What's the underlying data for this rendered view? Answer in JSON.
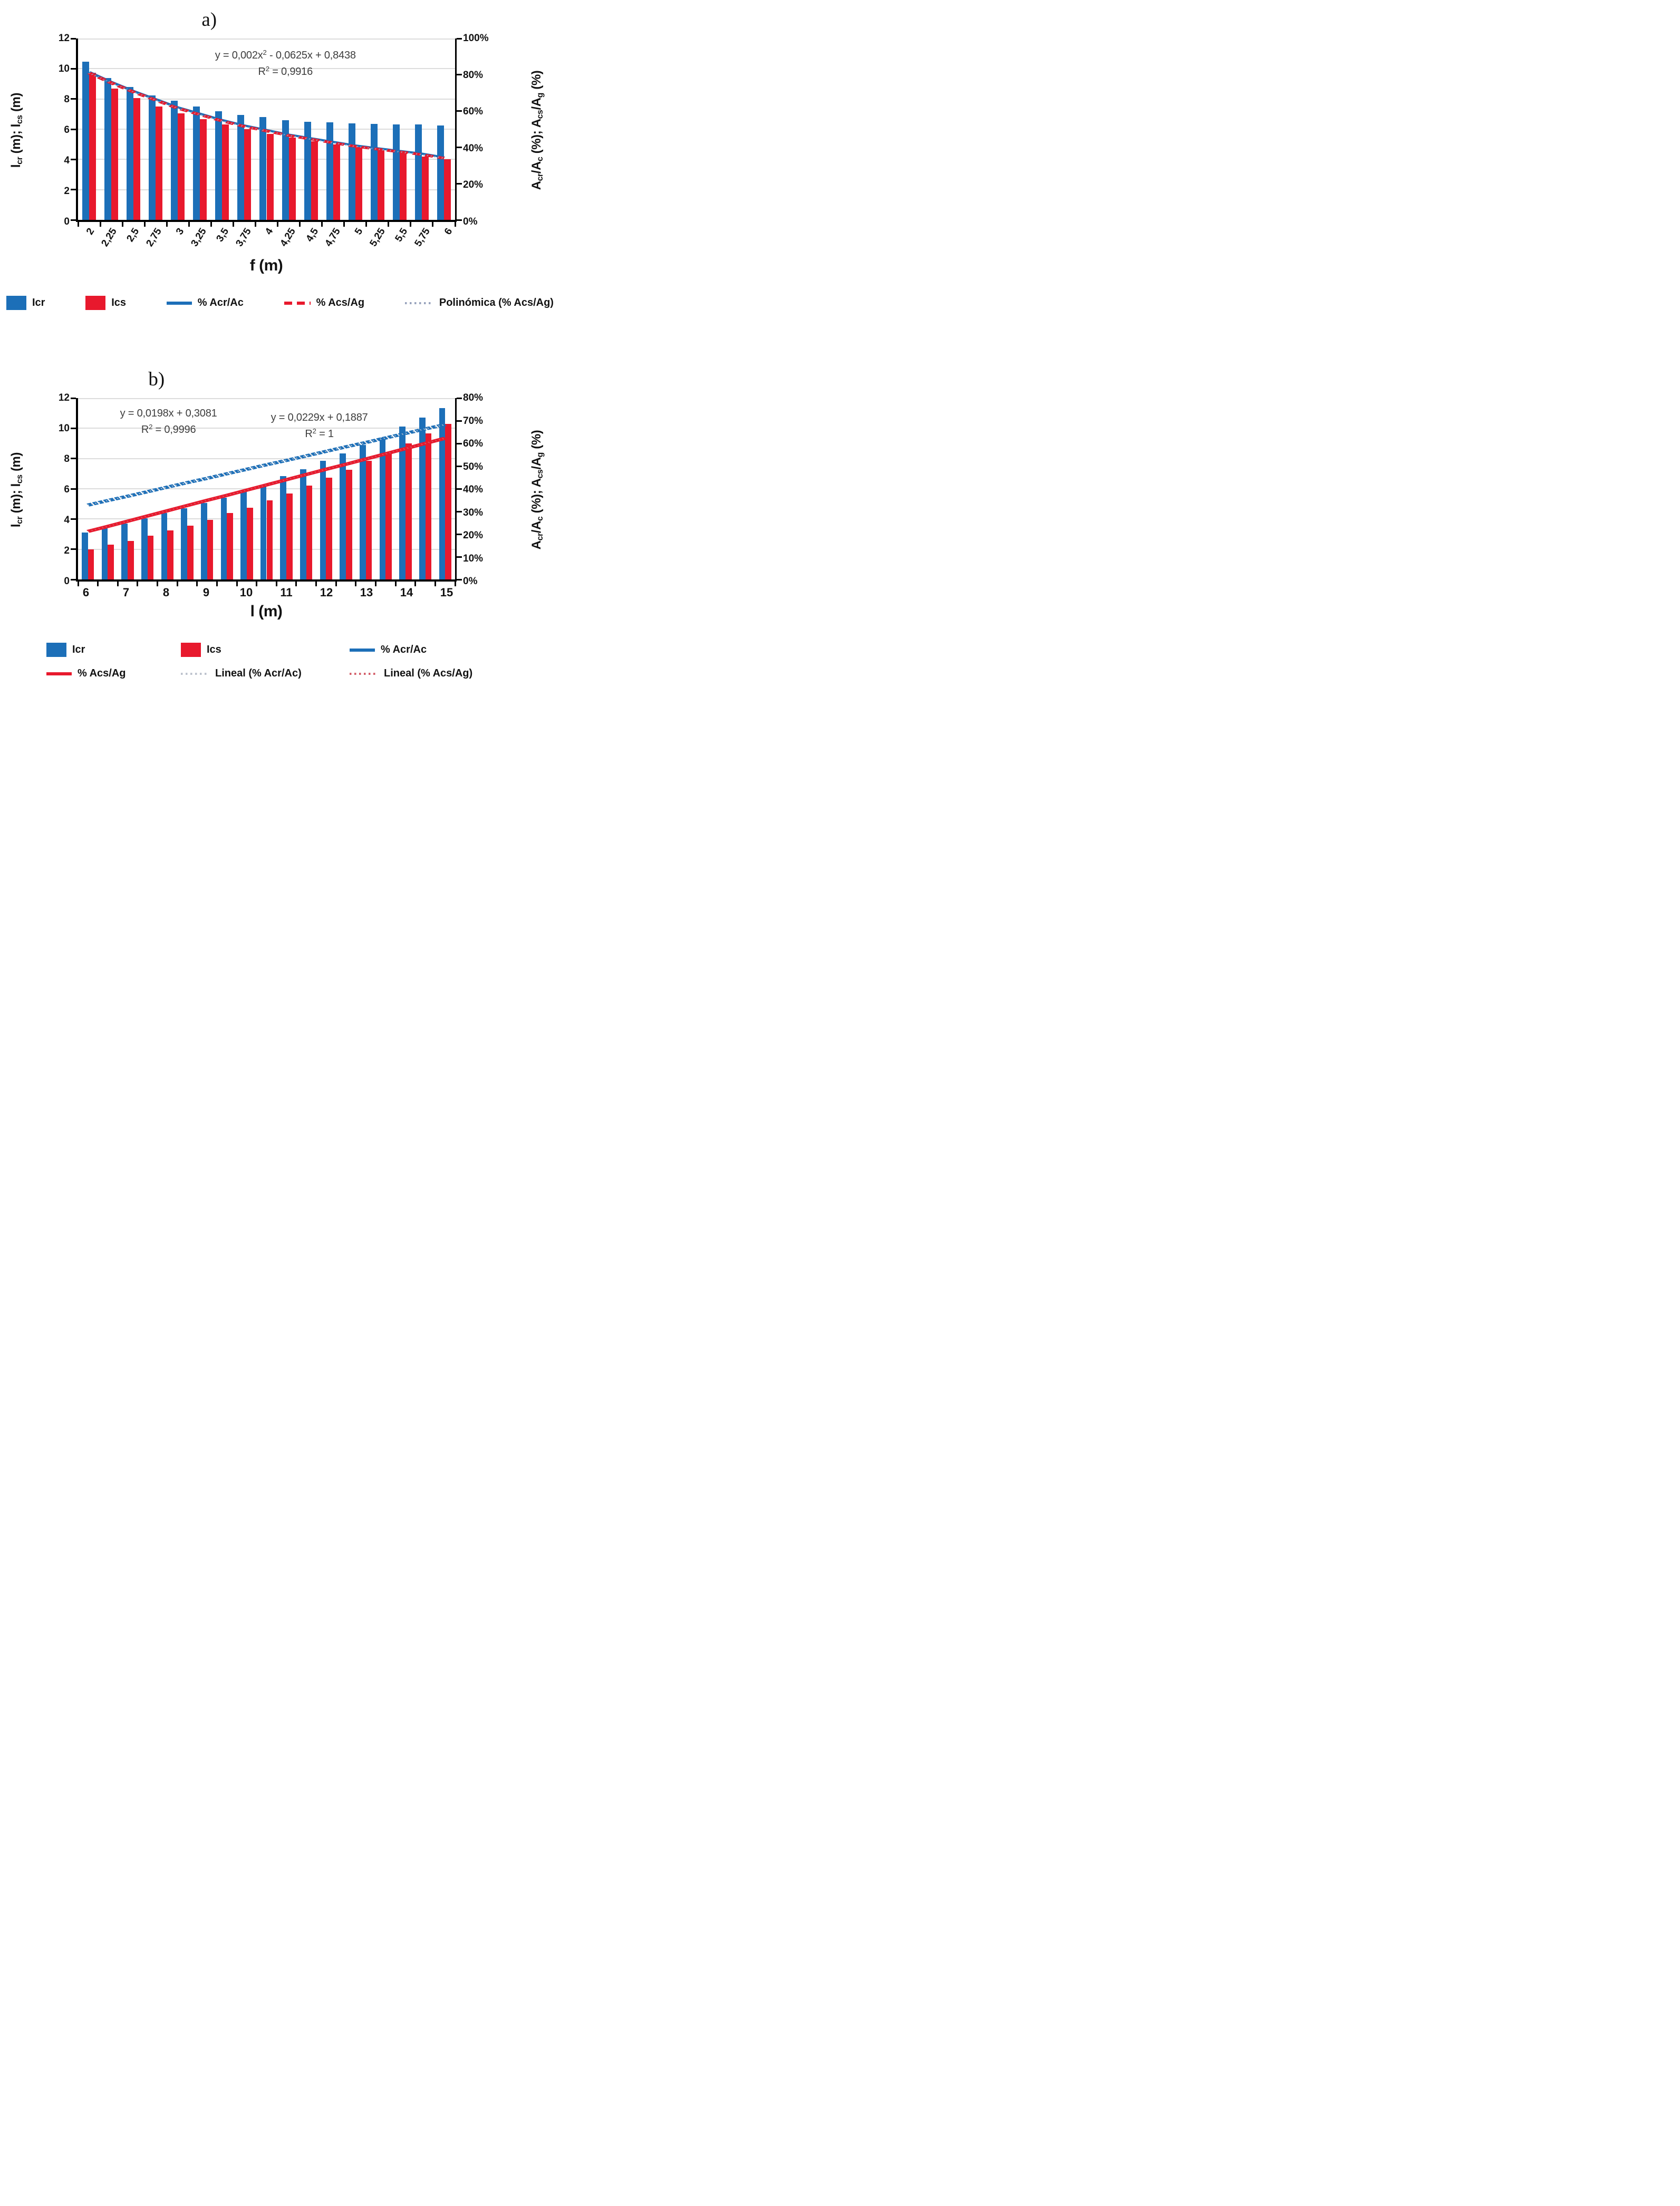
{
  "figure": {
    "background": "#ffffff"
  },
  "colors": {
    "bar_blue": "#1C6FB8",
    "bar_red": "#E8192D",
    "poly_dots": "#9AA5BE",
    "lineal_gray": "#BDC3CE",
    "lineal_red": "#D4606B",
    "gridline": "#dcdcdc",
    "axis": "#000000"
  },
  "chart_data": [
    {
      "id": "a",
      "type": "bar",
      "title": "a)",
      "x_title": "f (m)",
      "ylabel_left": "lcr (m); lcs (m)",
      "ylabel_right": "Acr/Ac (%); Acs/Ag (%)",
      "ylabel_left_segments": [
        {
          "t": "l"
        },
        {
          "sub": "cr"
        },
        {
          "t": " (m); l"
        },
        {
          "sub": "cs"
        },
        {
          "t": " (m)"
        }
      ],
      "ylabel_right_segments": [
        {
          "t": "A"
        },
        {
          "sub": "cr"
        },
        {
          "t": "/A"
        },
        {
          "sub": "c"
        },
        {
          "t": " (%); A"
        },
        {
          "sub": "cs"
        },
        {
          "t": "/A"
        },
        {
          "sub": "g"
        },
        {
          "t": " (%)"
        }
      ],
      "categories": [
        "2",
        "2,25",
        "2,5",
        "2,75",
        "3",
        "3,25",
        "3,5",
        "3,75",
        "4",
        "4,25",
        "4,5",
        "4,75",
        "5",
        "5,25",
        "5,5",
        "5,75",
        "6"
      ],
      "x_label_rotation": -58,
      "y_left": {
        "min": 0,
        "max": 12,
        "ticks": [
          "0",
          "2",
          "4",
          "6",
          "8",
          "10",
          "12"
        ]
      },
      "y_right": {
        "min": 0,
        "max": 100,
        "ticks": [
          "0%",
          "20%",
          "40%",
          "60%",
          "80%",
          "100%"
        ]
      },
      "bar_series": [
        {
          "key": "icr",
          "name": "Icr",
          "color": "#1C6FB8",
          "values": [
            10.45,
            9.4,
            8.8,
            8.25,
            7.9,
            7.5,
            7.2,
            6.95,
            6.8,
            6.6,
            6.5,
            6.45,
            6.4,
            6.35,
            6.3,
            6.3,
            6.25
          ]
        },
        {
          "key": "ics",
          "name": "Ics",
          "color": "#E8192D",
          "values": [
            9.75,
            8.7,
            8.05,
            7.5,
            7.05,
            6.65,
            6.3,
            6.0,
            5.7,
            5.45,
            5.2,
            5.0,
            4.8,
            4.6,
            4.45,
            4.2,
            4.0
          ]
        }
      ],
      "line_series": [
        {
          "key": "pct_acr_ac",
          "name": "% Acr/Ac",
          "color": "#1C6FB8",
          "width": 11.5,
          "dash": null,
          "values": [
            81.5,
            76,
            71,
            66.5,
            62,
            58.5,
            55,
            52,
            49.5,
            47,
            45,
            43,
            41,
            39.5,
            38,
            36.5,
            34.5
          ]
        },
        {
          "key": "pct_acs_ag",
          "name": "% Acs/Ag",
          "color": "#E8192D",
          "width": 14.4,
          "dash": "22 13",
          "values": [
            81,
            75.5,
            70.5,
            66,
            61.5,
            58,
            54.5,
            51.5,
            49,
            46.5,
            44.5,
            42.5,
            40.5,
            39,
            37.5,
            36,
            34
          ]
        },
        {
          "key": "poly_acs_ag",
          "name": "Polinómica (% Acs/Ag)",
          "color": "#9AA5BE",
          "width": 7.2,
          "dash": "2.7 7.5",
          "values": [
            81,
            75.5,
            70.5,
            66,
            61.5,
            58,
            54.5,
            51.5,
            49,
            46.5,
            44.5,
            42.5,
            40.5,
            39,
            37.5,
            36,
            34
          ]
        }
      ],
      "equations": [
        {
          "left": "55%",
          "top": "5%",
          "line1": [
            {
              "t": "y = 0,002x"
            },
            {
              "sup": "2"
            },
            {
              "t": " - 0,0625x + 0,8438"
            }
          ],
          "line2": [
            {
              "t": "R"
            },
            {
              "sup": "2"
            },
            {
              "t": " = 0,9916"
            }
          ]
        }
      ],
      "legend_layout": "spread",
      "legend_rows": [
        [
          {
            "swatch": "bar",
            "key": "icr",
            "color": "#1C6FB8",
            "label": "Icr"
          },
          {
            "swatch": "bar",
            "key": "ics",
            "color": "#E8192D",
            "label": "Ics"
          },
          {
            "swatch": "solid",
            "key": "pct_acr_ac",
            "color": "#1C6FB8",
            "label": "% Acr/Ac"
          },
          {
            "swatch": "dash",
            "key": "pct_acs_ag",
            "color": "#E8192D",
            "label": "% Acs/Ag"
          },
          {
            "swatch": "dots",
            "key": "poly_acs_ag",
            "color": "#9AA5BE",
            "label": "Polinómica (% Acs/Ag)"
          }
        ]
      ]
    },
    {
      "id": "b",
      "type": "bar",
      "title": "b)",
      "x_title": "l (m)",
      "ylabel_left": "lcr (m); lcs (m)",
      "ylabel_right": "Acr/Ac (%); Acs/Ag (%)",
      "ylabel_left_segments": [
        {
          "t": "l"
        },
        {
          "sub": "cr"
        },
        {
          "t": " (m); l"
        },
        {
          "sub": "cs"
        },
        {
          "t": " (m)"
        }
      ],
      "ylabel_right_segments": [
        {
          "t": "A"
        },
        {
          "sub": "cr"
        },
        {
          "t": "/A"
        },
        {
          "sub": "c"
        },
        {
          "t": " (%); A"
        },
        {
          "sub": "cs"
        },
        {
          "t": "/A"
        },
        {
          "sub": "g"
        },
        {
          "t": " (%)"
        }
      ],
      "categories": [
        "6",
        "6,5",
        "7",
        "7,5",
        "8",
        "8,5",
        "9",
        "9,5",
        "10",
        "10,5",
        "11",
        "11,5",
        "12",
        "12,5",
        "13",
        "13,5",
        "14",
        "14,5",
        "15"
      ],
      "x_label_rotation": 0,
      "x_tick_labels": [
        {
          "label": "6",
          "index": 0
        },
        {
          "label": "7",
          "index": 2
        },
        {
          "label": "8",
          "index": 4
        },
        {
          "label": "9",
          "index": 6
        },
        {
          "label": "10",
          "index": 8
        },
        {
          "label": "11",
          "index": 10
        },
        {
          "label": "12",
          "index": 12
        },
        {
          "label": "13",
          "index": 14
        },
        {
          "label": "14",
          "index": 16
        },
        {
          "label": "15",
          "index": 18
        }
      ],
      "y_left": {
        "min": 0,
        "max": 12,
        "ticks": [
          "0",
          "2",
          "4",
          "6",
          "8",
          "10",
          "12"
        ]
      },
      "y_right": {
        "min": 0,
        "max": 80,
        "ticks": [
          "0%",
          "10%",
          "20%",
          "30%",
          "40%",
          "50%",
          "60%",
          "70%",
          "80%"
        ]
      },
      "bar_series": [
        {
          "key": "icr",
          "name": "Icr",
          "color": "#1C6FB8",
          "values": [
            3.1,
            3.4,
            3.7,
            4.05,
            4.4,
            4.7,
            5.05,
            5.4,
            5.9,
            6.15,
            6.85,
            7.3,
            7.85,
            8.35,
            8.9,
            9.4,
            10.1,
            10.7,
            11.35
          ]
        },
        {
          "key": "ics",
          "name": "Ics",
          "color": "#E8192D",
          "values": [
            2.0,
            2.3,
            2.55,
            2.9,
            3.25,
            3.55,
            3.95,
            4.4,
            4.75,
            5.25,
            5.7,
            6.2,
            6.75,
            7.25,
            7.85,
            8.35,
            9.0,
            9.65,
            10.3
          ]
        }
      ],
      "line_series": [
        {
          "key": "pct_acr_ac",
          "name": "% Acr/Ac",
          "color": "#1C6FB8",
          "width": 17.2,
          "dash": "12 4",
          "values": [
            32.8,
            34.8,
            36.7,
            38.7,
            40.7,
            42.7,
            44.6,
            46.6,
            48.6,
            50.6,
            52.5,
            54.5,
            56.5,
            58.5,
            60.4,
            62.4,
            64.4,
            66.4,
            68.3
          ]
        },
        {
          "key": "lineal_acr_ac",
          "name": "Lineal (% Acr/Ac)",
          "color": "#BDC3CE",
          "width": 7.2,
          "dash": "2.7 8",
          "values": [
            32.8,
            34.8,
            36.7,
            38.7,
            40.7,
            42.7,
            44.6,
            46.6,
            48.6,
            50.6,
            52.5,
            54.5,
            56.5,
            58.5,
            60.4,
            62.4,
            64.4,
            66.4,
            68.3
          ]
        },
        {
          "key": "pct_acs_ag",
          "name": "% Acs/Ag",
          "color": "#E8192D",
          "width": 17.2,
          "dash": null,
          "values": [
            21.2,
            23.4,
            25.7,
            28.0,
            30.3,
            32.6,
            34.9,
            37.1,
            39.4,
            41.7,
            44.0,
            46.3,
            48.6,
            50.8,
            53.1,
            55.4,
            57.7,
            60.0,
            62.3
          ]
        },
        {
          "key": "lineal_acs_ag",
          "name": "Lineal (% Acs/Ag)",
          "color": "#D4606B",
          "width": 7.2,
          "dash": "2.7 8",
          "values": [
            21.2,
            23.4,
            25.7,
            28.0,
            30.3,
            32.6,
            34.9,
            37.1,
            39.4,
            41.7,
            44.0,
            46.3,
            48.6,
            50.8,
            53.1,
            55.4,
            57.7,
            60.0,
            62.3
          ]
        }
      ],
      "equations": [
        {
          "left": "24%",
          "top": "4%",
          "line1": [
            {
              "t": "y = 0,0198x + 0,3081"
            }
          ],
          "line2": [
            {
              "t": "R"
            },
            {
              "sup": "2"
            },
            {
              "t": " = 0,9996"
            }
          ]
        },
        {
          "left": "64%",
          "top": "6.5%",
          "line1": [
            {
              "t": "y = 0,0229x + 0,1887"
            }
          ],
          "line2": [
            {
              "t": "R"
            },
            {
              "sup": "2"
            },
            {
              "t": " = 1"
            }
          ]
        }
      ],
      "legend_layout": "grid",
      "legend_rows": [
        [
          {
            "swatch": "bar",
            "key": "icr",
            "color": "#1C6FB8",
            "label": "Icr"
          },
          {
            "swatch": "bar",
            "key": "ics",
            "color": "#E8192D",
            "label": "Ics"
          },
          {
            "swatch": "solid",
            "key": "pct_acr_ac",
            "color": "#1C6FB8",
            "label": "% Acr/Ac"
          }
        ],
        [
          {
            "swatch": "solid",
            "key": "pct_acs_ag",
            "color": "#E8192D",
            "label": "% Acs/Ag"
          },
          {
            "swatch": "dots",
            "key": "lineal_acr_ac",
            "color": "#BDC3CE",
            "label": "Lineal (% Acr/Ac)"
          },
          {
            "swatch": "dots",
            "key": "lineal_acs_ag",
            "color": "#D4606B",
            "label": "Lineal (% Acs/Ag)"
          }
        ]
      ]
    }
  ]
}
